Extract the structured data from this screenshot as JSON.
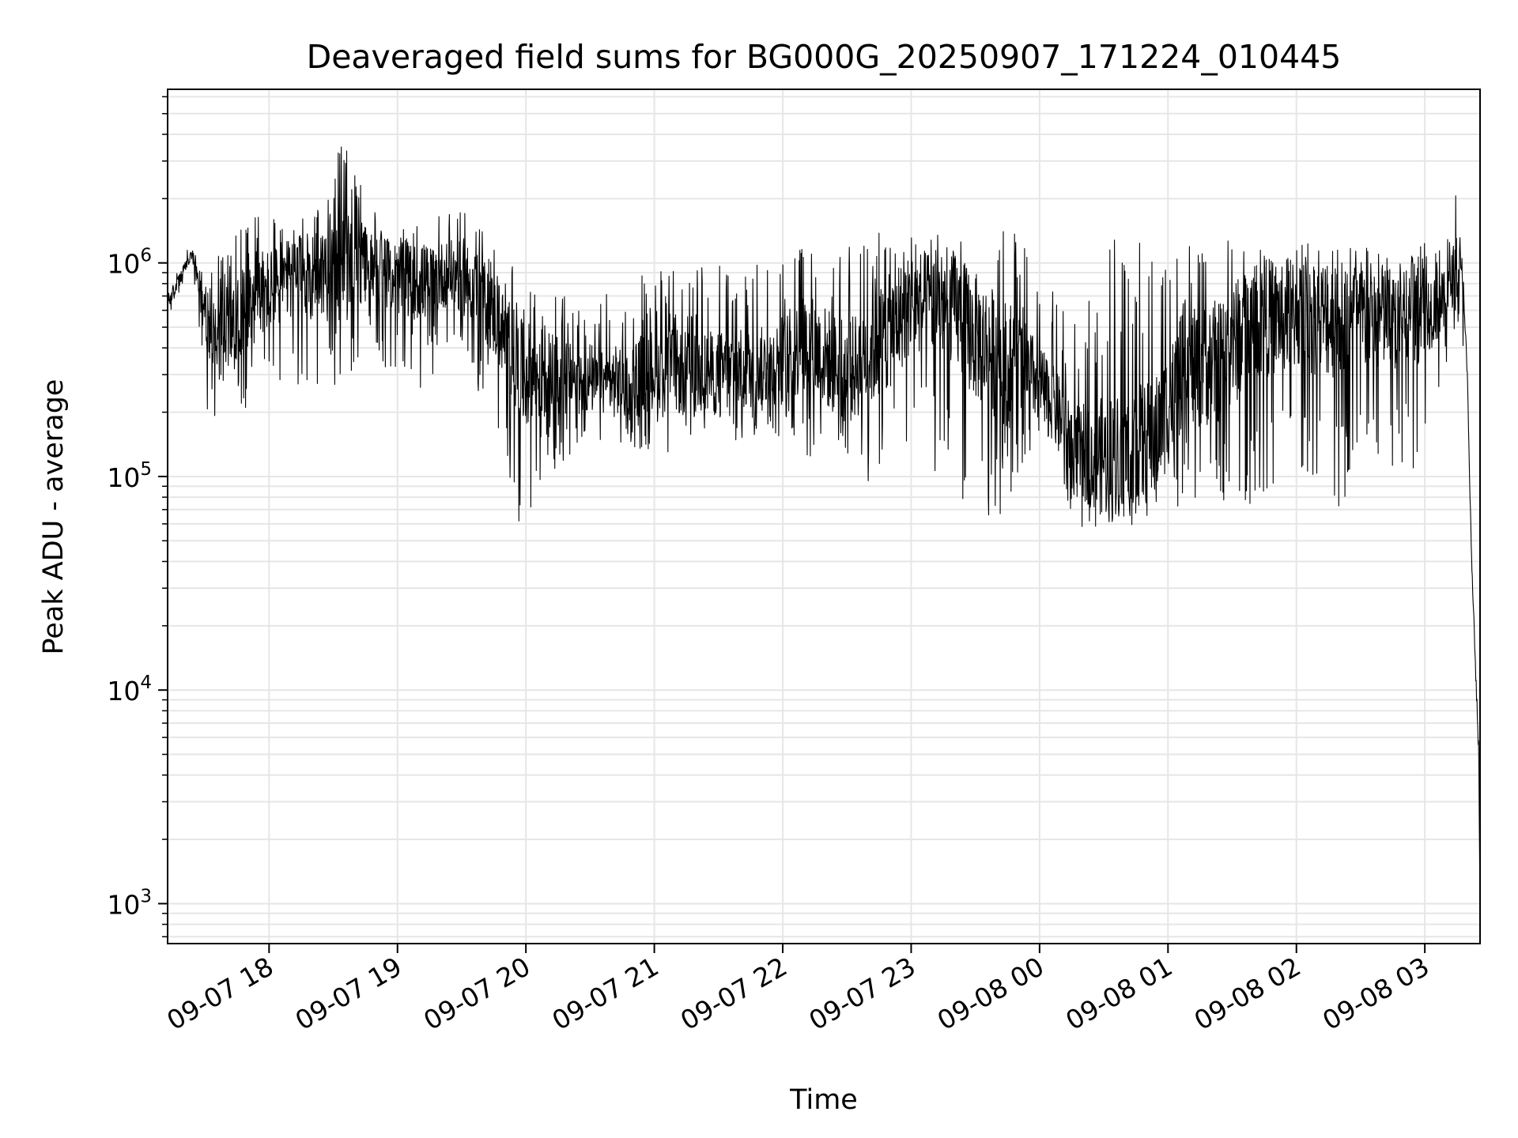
{
  "chart_data": {
    "type": "line",
    "title": "Deaveraged field sums for BG000G_20250907_171224_010445",
    "xlabel": "Time",
    "ylabel": "Peak ADU - average",
    "yscale": "log",
    "ylim": [
      650,
      6500000
    ],
    "xlim_hours": [
      17.21,
      27.43
    ],
    "grid": true,
    "line_color": "#000000",
    "grid_color": "#e6e6e6",
    "x_ticks": [
      {
        "label": "09-07 18",
        "hour": 18
      },
      {
        "label": "09-07 19",
        "hour": 19
      },
      {
        "label": "09-07 20",
        "hour": 20
      },
      {
        "label": "09-07 21",
        "hour": 21
      },
      {
        "label": "09-07 22",
        "hour": 22
      },
      {
        "label": "09-07 23",
        "hour": 23
      },
      {
        "label": "09-08 00",
        "hour": 24
      },
      {
        "label": "09-08 01",
        "hour": 25
      },
      {
        "label": "09-08 02",
        "hour": 26
      },
      {
        "label": "09-08 03",
        "hour": 27
      }
    ],
    "y_ticks": [
      {
        "base": "10",
        "exp": "3",
        "value": 1000
      },
      {
        "base": "10",
        "exp": "4",
        "value": 10000
      },
      {
        "base": "10",
        "exp": "5",
        "value": 100000
      },
      {
        "base": "10",
        "exp": "6",
        "value": 1000000
      }
    ],
    "series": [
      {
        "name": "Deaveraged field sum",
        "envelope": {
          "hour": [
            17.21,
            17.4,
            17.5,
            17.6,
            17.8,
            18.0,
            18.2,
            18.4,
            18.6,
            18.8,
            19.0,
            19.2,
            19.4,
            19.6,
            19.8,
            19.95,
            20.2,
            20.5,
            20.8,
            21.0,
            21.3,
            21.6,
            21.9,
            22.2,
            22.5,
            22.8,
            23.0,
            23.3,
            23.5,
            23.8,
            24.0,
            24.3,
            24.6,
            24.9,
            25.1,
            25.4,
            25.7,
            26.0,
            26.3,
            26.6,
            26.9,
            27.15,
            27.25,
            27.3,
            27.33,
            27.36,
            27.39,
            27.42,
            27.43
          ],
          "center": [
            650000,
            1100000,
            550000,
            450000,
            600000,
            750000,
            850000,
            900000,
            950000,
            1000000,
            850000,
            800000,
            900000,
            800000,
            500000,
            300000,
            300000,
            270000,
            280000,
            320000,
            300000,
            310000,
            330000,
            420000,
            300000,
            450000,
            650000,
            650000,
            450000,
            320000,
            280000,
            130000,
            120000,
            150000,
            300000,
            350000,
            550000,
            580000,
            550000,
            550000,
            560000,
            650000,
            1000000,
            800000,
            300000,
            50000,
            15000,
            5000,
            1000
          ],
          "low": [
            550000,
            1000000,
            200000,
            180000,
            200000,
            250000,
            250000,
            200000,
            300000,
            350000,
            300000,
            250000,
            400000,
            250000,
            150000,
            60000,
            100000,
            150000,
            130000,
            120000,
            130000,
            140000,
            160000,
            110000,
            100000,
            90000,
            130000,
            90000,
            60000,
            70000,
            150000,
            55000,
            55000,
            65000,
            70000,
            65000,
            75000,
            75000,
            70000,
            80000,
            90000,
            300000,
            550000,
            400000,
            200000,
            20000,
            10000,
            4500,
            800
          ],
          "high": [
            800000,
            1300000,
            800000,
            1300000,
            1500000,
            1800000,
            1700000,
            2000000,
            4200000,
            1800000,
            1700000,
            1600000,
            1900000,
            1700000,
            1100000,
            900000,
            800000,
            600000,
            900000,
            900000,
            1000000,
            1000000,
            1100000,
            1300000,
            1200000,
            1500000,
            1500000,
            1400000,
            1300000,
            1500000,
            900000,
            500000,
            1400000,
            1200000,
            1200000,
            1300000,
            1300000,
            1250000,
            1300000,
            1200000,
            1200000,
            1300000,
            2300000,
            1200000,
            400000,
            80000,
            22000,
            6000,
            1200
          ]
        }
      }
    ]
  }
}
